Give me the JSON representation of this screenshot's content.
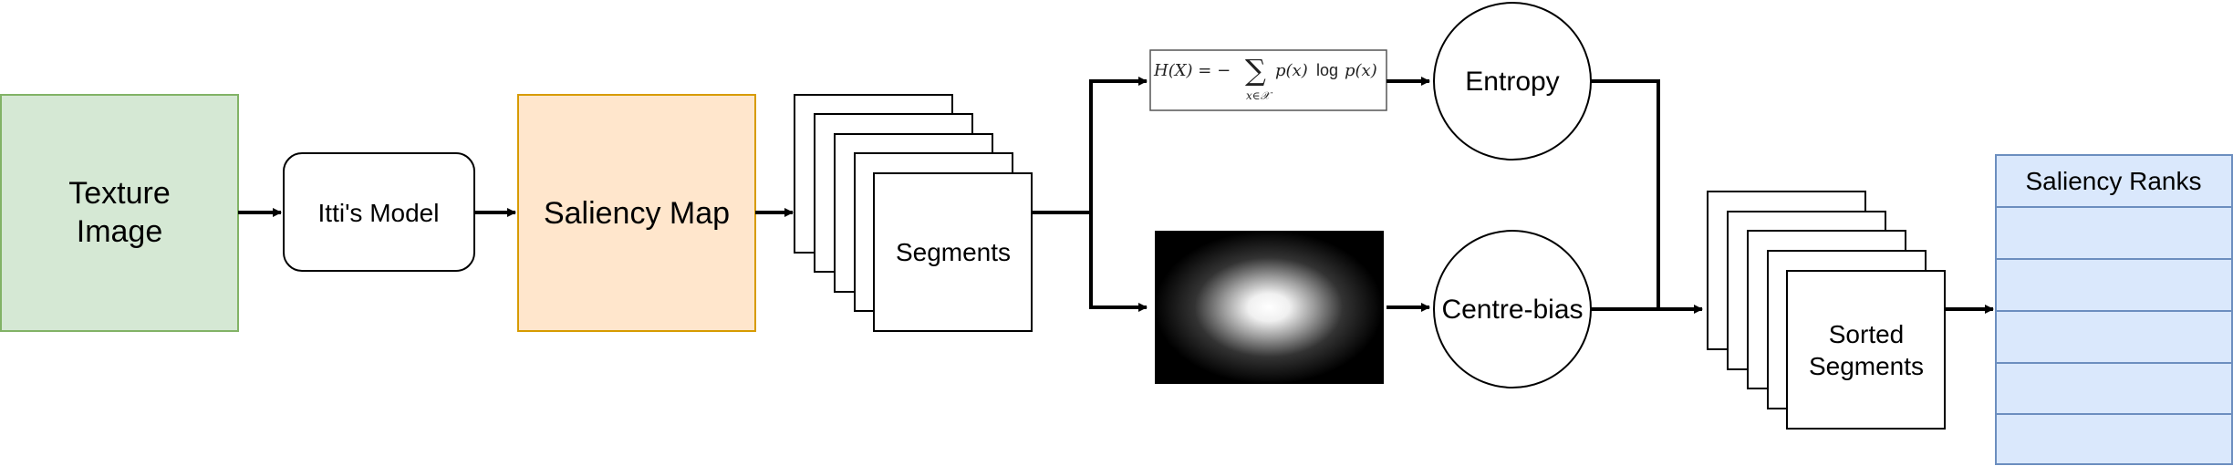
{
  "nodes": {
    "texture_image": {
      "line1": "Texture",
      "line2": "Image",
      "fill": "#d5e8d4",
      "stroke": "#82b366"
    },
    "ittis_model": {
      "label": "Itti's Model"
    },
    "saliency_map": {
      "label": "Saliency Map",
      "fill": "#ffe6cc",
      "stroke": "#d79b00"
    },
    "segments": {
      "label": "Segments"
    },
    "entropy": {
      "label": "Entropy"
    },
    "centre_bias": {
      "label": "Centre-bias"
    },
    "sorted_segments": {
      "line1": "Sorted",
      "line2": "Segments"
    },
    "saliency_ranks": {
      "header": "Saliency Ranks",
      "fill": "#dae8fc",
      "stroke": "#6c8ebf"
    }
  },
  "formula": {
    "lhs": "H(X) = −",
    "sum": "∑",
    "sub": "x∈𝒳",
    "px": "p(x)",
    "log": "log",
    "px2": "p(x)"
  }
}
